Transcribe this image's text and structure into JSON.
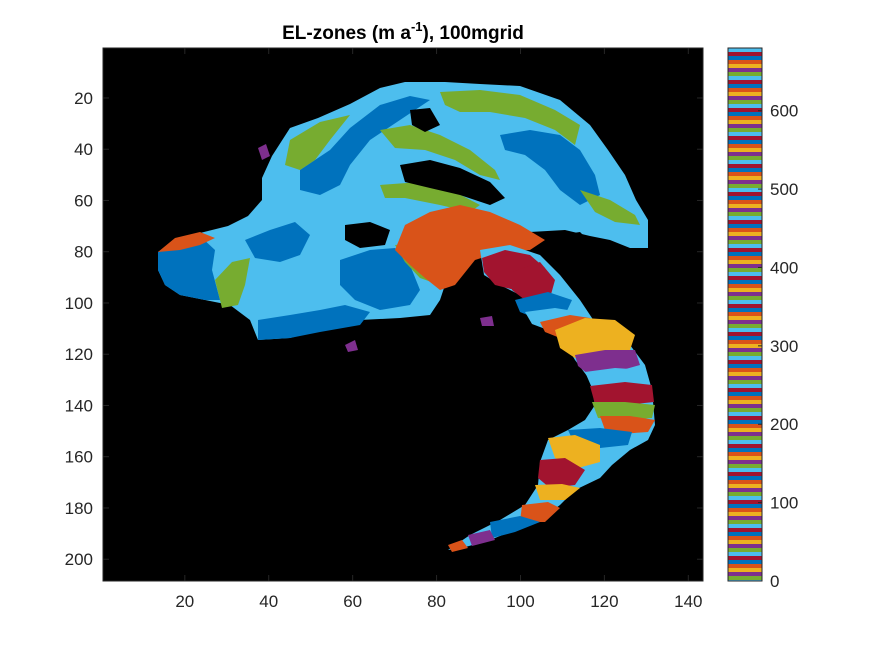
{
  "chart_data": {
    "type": "heatmap",
    "title": "EL-zones (m a",
    "title_superscript": "-1",
    "title_suffix": "), 100mgrid",
    "xlabel": "",
    "ylabel": "",
    "xlim": [
      0.5,
      143.5
    ],
    "ylim": [
      0.5,
      208.5
    ],
    "y_reversed": true,
    "x_ticks": [
      20,
      40,
      60,
      80,
      100,
      120,
      140
    ],
    "y_ticks": [
      20,
      40,
      60,
      80,
      100,
      120,
      140,
      160,
      180,
      200
    ],
    "background_value_color": "#000000",
    "zone_colors": [
      "#0072BD",
      "#D95319",
      "#EDB120",
      "#7E2F8E",
      "#77AC30",
      "#4DBEEE",
      "#A2142F"
    ],
    "colorbar": {
      "ticks": [
        0,
        100,
        200,
        300,
        400,
        500,
        600
      ],
      "range": [
        0,
        680
      ],
      "colormap": "lines"
    },
    "grid": false,
    "legend": "none"
  }
}
